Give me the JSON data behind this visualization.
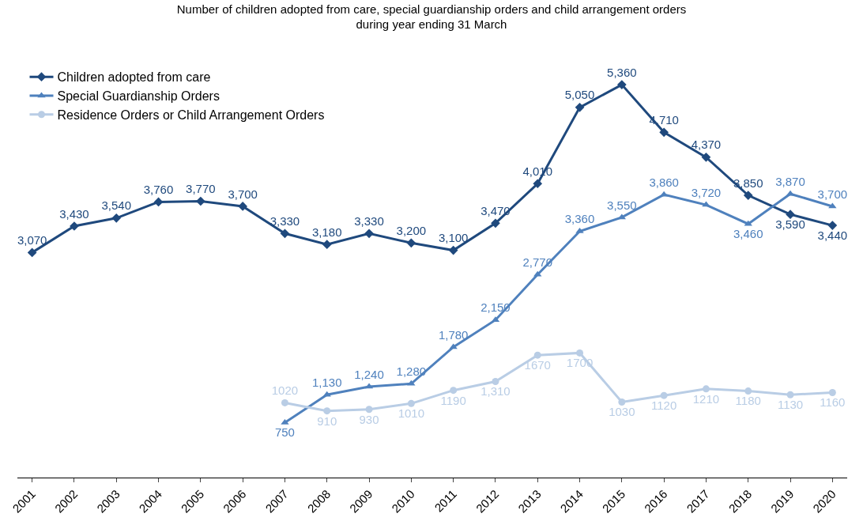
{
  "chart_data": {
    "type": "line",
    "title": "Number of children adopted from care, special guardianship orders and child arrangement orders\nduring year ending 31 March",
    "categories": [
      "2001",
      "2002",
      "2003",
      "2004",
      "2005",
      "2006",
      "2007",
      "2008",
      "2009",
      "2010",
      "2011",
      "2012",
      "2013",
      "2014",
      "2015",
      "2016",
      "2017",
      "2018",
      "2019",
      "2020"
    ],
    "tick_labels": "x",
    "legend": "top left",
    "series": [
      {
        "name": "Children adopted from care",
        "color": "#1f497d",
        "marker": "diamond",
        "values": [
          3070,
          3430,
          3540,
          3760,
          3770,
          3700,
          3330,
          3180,
          3330,
          3200,
          3100,
          3470,
          4010,
          5050,
          5360,
          4710,
          4370,
          3850,
          3590,
          3440
        ],
        "value_labels": [
          "3,070",
          "3,430",
          "3,540",
          "3,760",
          "3,770",
          "3,700",
          "3,330",
          "3,180",
          "3,330",
          "3,200",
          "3,100",
          "3,470",
          "4,010",
          "5,050",
          "5,360",
          "4,710",
          "4,370",
          "3,850",
          "3,590",
          "3,440"
        ]
      },
      {
        "name": "Special Guardianship Orders",
        "color": "#4f81bd",
        "marker": "triangle",
        "values": [
          null,
          null,
          null,
          null,
          null,
          null,
          750,
          1130,
          1240,
          1280,
          1780,
          2150,
          2770,
          3360,
          3550,
          3860,
          3720,
          3460,
          3870,
          3700
        ],
        "value_labels": [
          null,
          null,
          null,
          null,
          null,
          null,
          "750",
          "1,130",
          "1,240",
          "1,280",
          "1,780",
          "2,150",
          "2,770",
          "3,360",
          "3,550",
          "3,860",
          "3,720",
          "3,460",
          "3,870",
          "3,700"
        ]
      },
      {
        "name": "Residence Orders or Child Arrangement Orders",
        "color": "#b9cde5",
        "marker": "circle",
        "values": [
          null,
          null,
          null,
          null,
          null,
          null,
          1020,
          910,
          930,
          1010,
          1190,
          1310,
          1670,
          1700,
          1030,
          1120,
          1210,
          1180,
          1130,
          1160
        ],
        "value_labels": [
          null,
          null,
          null,
          null,
          null,
          null,
          "1020",
          "910",
          "930",
          "1010",
          "1190",
          "1,310",
          "1670",
          "1700",
          "1030",
          "1120",
          "1210",
          "1180",
          "1130",
          "1160"
        ]
      }
    ]
  }
}
